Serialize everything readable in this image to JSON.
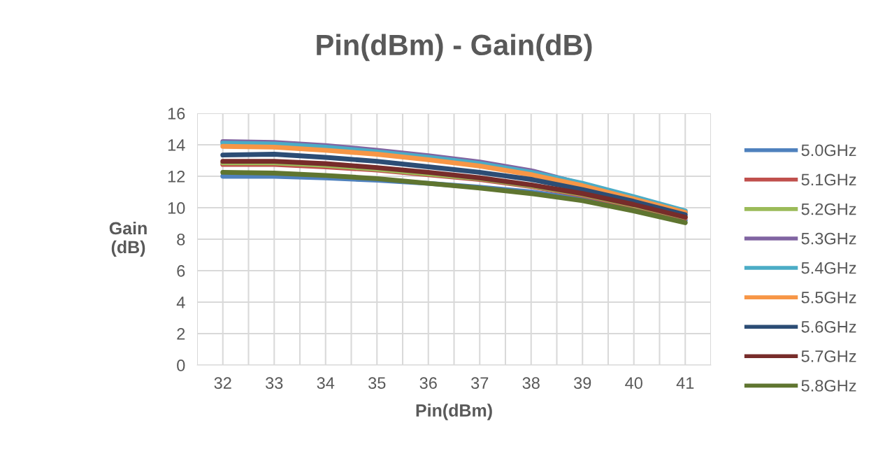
{
  "chart_data": {
    "type": "line",
    "title": "Pin(dBm) - Gain(dB)",
    "xlabel": "Pin(dBm)",
    "ylabel": "Gain\n(dB)",
    "categories": [
      "32",
      "33",
      "34",
      "35",
      "36",
      "37",
      "38",
      "39",
      "40",
      "41"
    ],
    "ylim": [
      0,
      16
    ],
    "yticks": [
      0,
      2,
      4,
      6,
      8,
      10,
      12,
      14,
      16
    ],
    "grid": true,
    "legend": "right",
    "marker": "none",
    "line_style": "solid",
    "series": [
      {
        "name": "5.0GHz",
        "color": "#4f81bd",
        "values": [
          12.0,
          12.0,
          11.9,
          11.75,
          11.55,
          11.3,
          11.0,
          10.55,
          9.95,
          9.2
        ]
      },
      {
        "name": "5.1GHz",
        "color": "#c0504d",
        "values": [
          12.75,
          12.75,
          12.6,
          12.4,
          12.1,
          11.8,
          11.35,
          10.8,
          10.1,
          9.35
        ]
      },
      {
        "name": "5.2GHz",
        "color": "#9bbb59",
        "values": [
          12.85,
          12.85,
          12.7,
          12.45,
          12.15,
          11.85,
          11.4,
          10.85,
          10.15,
          9.4
        ]
      },
      {
        "name": "5.3GHz",
        "color": "#8064a2",
        "values": [
          14.2,
          14.15,
          13.95,
          13.65,
          13.3,
          12.9,
          12.35,
          11.5,
          10.6,
          9.7
        ]
      },
      {
        "name": "5.4GHz",
        "color": "#4bacc6",
        "values": [
          14.1,
          14.05,
          13.85,
          13.55,
          13.2,
          12.8,
          12.25,
          11.55,
          10.7,
          9.8
        ]
      },
      {
        "name": "5.5GHz",
        "color": "#f79646",
        "values": [
          13.9,
          13.85,
          13.65,
          13.4,
          13.05,
          12.65,
          12.1,
          11.4,
          10.55,
          9.7
        ]
      },
      {
        "name": "5.6GHz",
        "color": "#2c4d75",
        "values": [
          13.35,
          13.4,
          13.2,
          12.95,
          12.6,
          12.25,
          11.8,
          11.15,
          10.4,
          9.55
        ]
      },
      {
        "name": "5.7GHz",
        "color": "#772c2a",
        "values": [
          12.95,
          12.95,
          12.8,
          12.55,
          12.25,
          11.9,
          11.45,
          10.9,
          10.2,
          9.4
        ]
      },
      {
        "name": "5.8GHz",
        "color": "#5f7530",
        "values": [
          12.25,
          12.2,
          12.05,
          11.85,
          11.55,
          11.25,
          10.9,
          10.45,
          9.8,
          9.05
        ]
      }
    ]
  }
}
